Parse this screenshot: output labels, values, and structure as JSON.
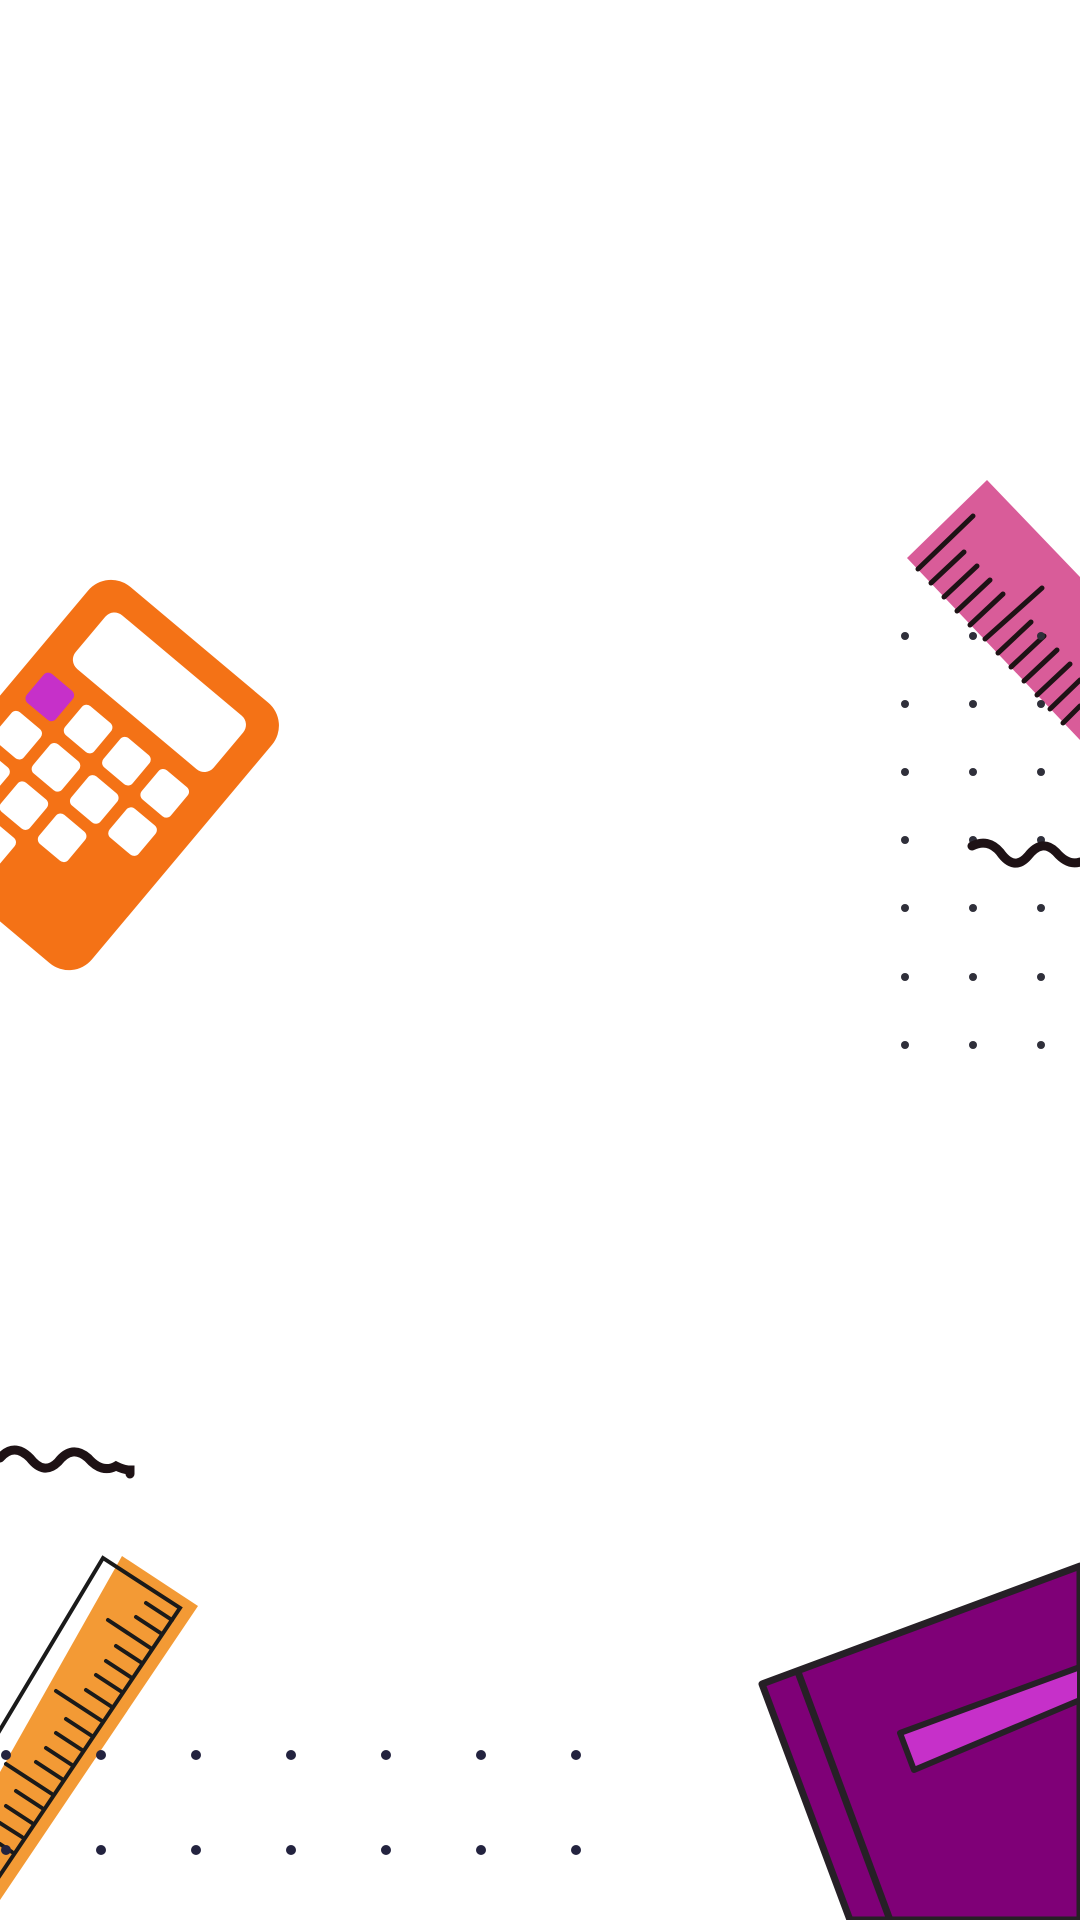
{
  "canvas": {
    "background": "#ffffff",
    "decorations": [
      {
        "name": "calculator-icon",
        "colors": {
          "body": "#f47216",
          "keys": "#ffffff",
          "accent-key": "#c630c9"
        }
      },
      {
        "name": "pink-ruler-icon",
        "colors": {
          "body": "#d95c99",
          "ticks": "#1e1215"
        }
      },
      {
        "name": "orange-ruler-icon",
        "colors": {
          "body": "#f39a35",
          "outline": "#1a1a1a"
        }
      },
      {
        "name": "purple-book-icon",
        "colors": {
          "cover": "#7f0077",
          "band": "#c630c9",
          "outline": "#262026"
        }
      },
      {
        "name": "squiggle-line-icon",
        "colors": {
          "stroke": "#1e1215"
        }
      },
      {
        "name": "dot-grid-pattern",
        "colors": {
          "dot": "#2f2f3a"
        }
      }
    ]
  }
}
